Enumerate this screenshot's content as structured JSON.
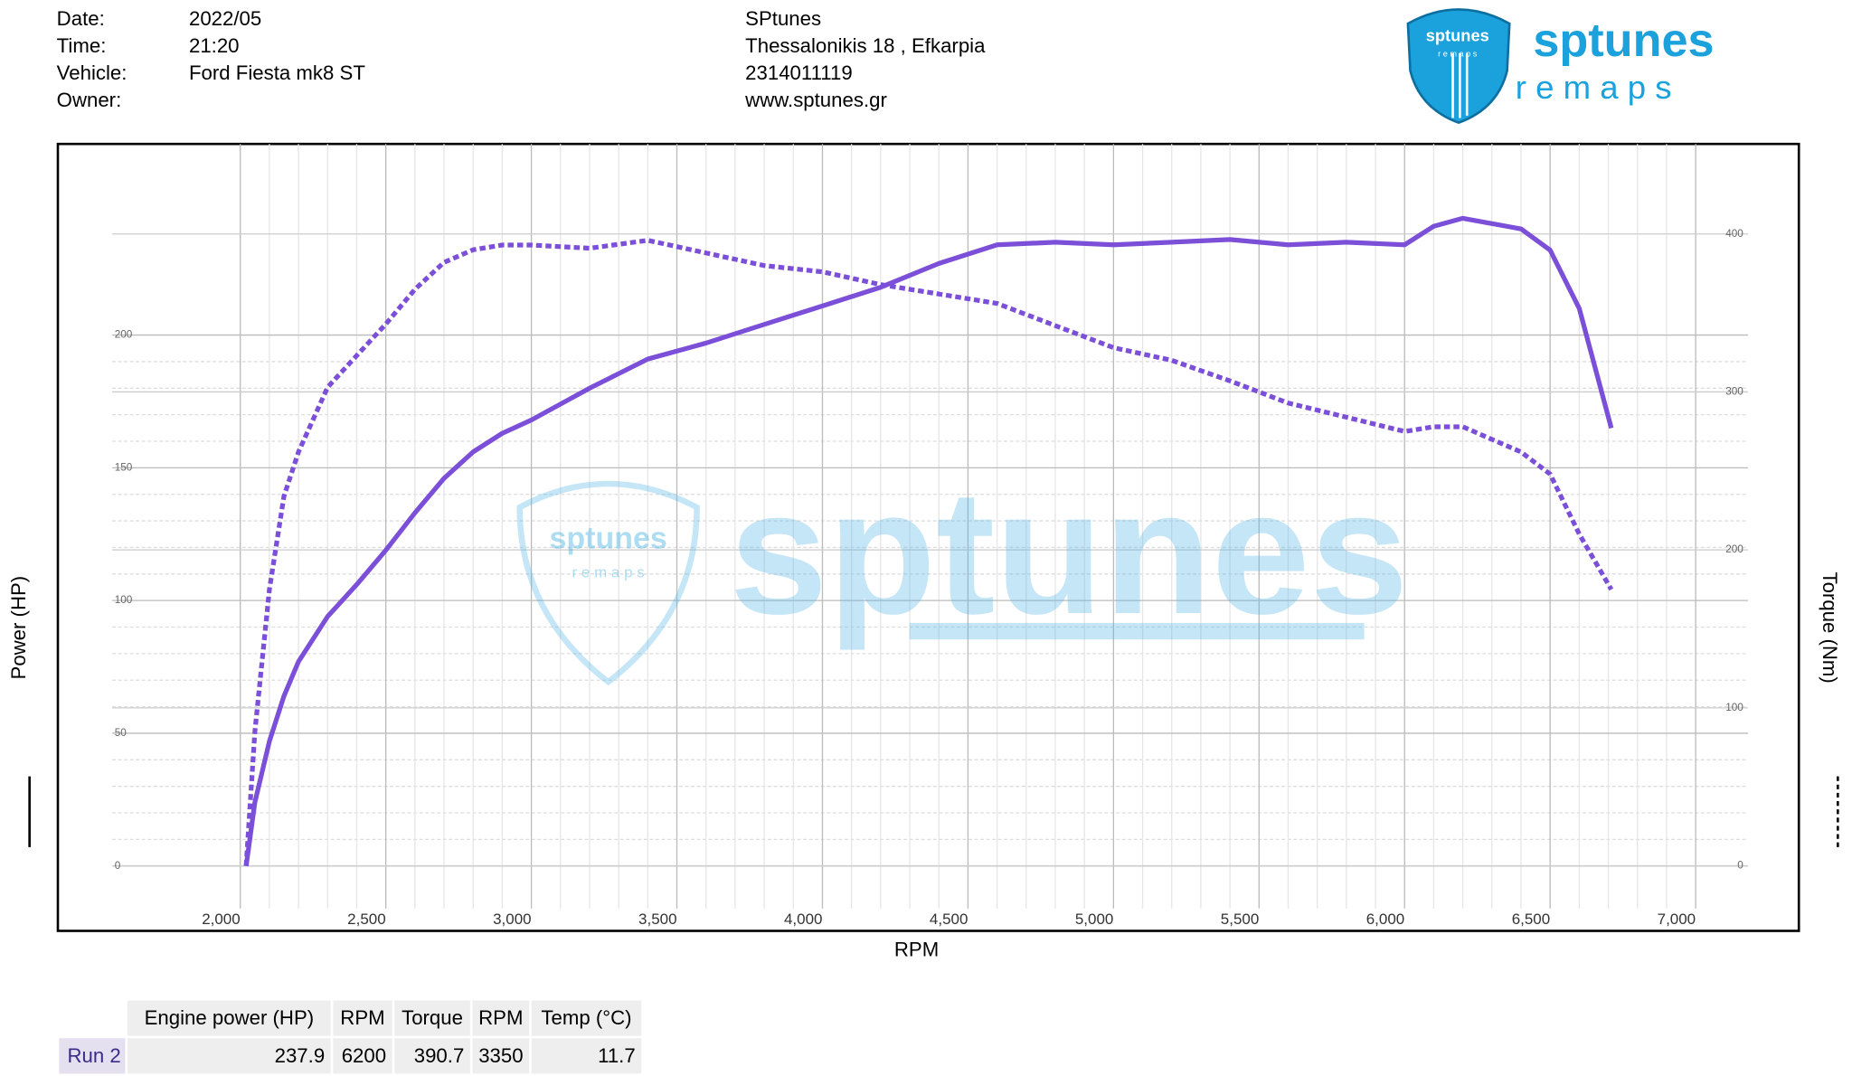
{
  "header": {
    "fields": [
      {
        "label": "Date:",
        "value": "2022/05"
      },
      {
        "label": "Time:",
        "value": "21:20"
      },
      {
        "label": "Vehicle:",
        "value": "Ford Fiesta mk8 ST"
      },
      {
        "label": "Owner:"
      }
    ],
    "company": [
      "SPtunes",
      "Thessalonikis 18 , Efkarpia",
      "2314011119",
      "www.sptunes.gr"
    ],
    "logo": {
      "name": "sptunes",
      "tagline": "r e m a p s"
    }
  },
  "chart_data": {
    "type": "line",
    "x_label": "RPM",
    "y_label": "Power (HP)",
    "y2_label": "Torque (Nm)",
    "x": [
      2020,
      2050,
      2100,
      2150,
      2200,
      2300,
      2400,
      2500,
      2600,
      2700,
      2800,
      2900,
      3000,
      3200,
      3400,
      3600,
      3800,
      4000,
      4200,
      4400,
      4600,
      4800,
      5000,
      5200,
      5400,
      5600,
      5800,
      6000,
      6100,
      6200,
      6300,
      6400,
      6500,
      6600,
      6710
    ],
    "series": [
      {
        "color": "#7b4fd8",
        "dash": false,
        "values": [
          0,
          24,
          47,
          64,
          77,
          94,
          106,
          119,
          133,
          146,
          156,
          163,
          168,
          180,
          191,
          197,
          204,
          211,
          218,
          227,
          234,
          235,
          234,
          235,
          236,
          234,
          235,
          234,
          241,
          244,
          242,
          240,
          232,
          210,
          165
        ]
      },
      {
        "color": "#7b4fd8",
        "dash": true,
        "axis": "y2",
        "values": [
          0,
          85,
          175,
          234,
          262,
          303,
          323,
          343,
          365,
          382,
          390,
          393,
          393,
          391,
          396,
          388,
          380,
          376,
          368,
          362,
          356,
          342,
          328,
          320,
          307,
          293,
          284,
          275,
          278,
          278,
          270,
          262,
          248,
          210,
          175
        ]
      }
    ],
    "xlim": [
      1560,
      7180
    ],
    "xticks": [
      {
        "value": 2000,
        "label": "2,000"
      },
      {
        "value": 2500,
        "label": "2,500"
      },
      {
        "value": 3000,
        "label": "3,000"
      },
      {
        "value": 3500,
        "label": "3,500"
      },
      {
        "value": 4000,
        "label": "4,000"
      },
      {
        "value": 4500,
        "label": "4,500"
      },
      {
        "value": 5000,
        "label": "5,000"
      },
      {
        "value": 5500,
        "label": "5,500"
      },
      {
        "value": 6000,
        "label": "6,000"
      },
      {
        "value": 6500,
        "label": "6,500"
      },
      {
        "value": 7000,
        "label": "7,000"
      }
    ],
    "ylim": [
      -16,
      272
    ],
    "yticks": [
      0,
      50,
      100,
      150,
      200
    ],
    "y2lim": [
      -27,
      457
    ],
    "y2ticks": [
      0,
      100,
      200,
      300,
      400
    ],
    "grid": true
  },
  "table": {
    "columns": [
      "Engine power (HP)",
      "RPM",
      "Torque",
      "RPM",
      "Temp (°C)"
    ],
    "rows": [
      [
        "Run 2",
        "237.9",
        "6200",
        "390.7",
        "3350",
        "11.7"
      ]
    ]
  }
}
